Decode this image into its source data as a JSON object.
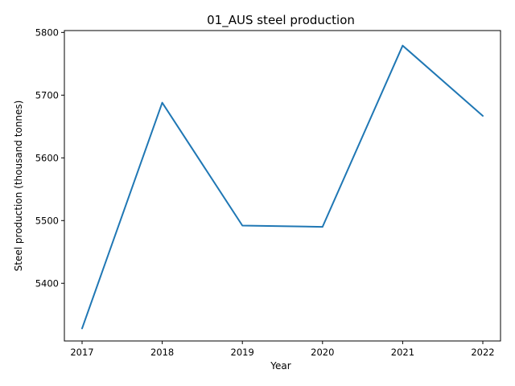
{
  "chart_data": {
    "type": "line",
    "title": "01_AUS steel production",
    "xlabel": "Year",
    "ylabel": "Steel production (thousand tonnes)",
    "x": [
      2017,
      2018,
      2019,
      2020,
      2021,
      2022
    ],
    "series": [
      {
        "values": [
          5328,
          5688,
          5492,
          5490,
          5779,
          5667
        ],
        "color": "#1f77b4"
      }
    ],
    "xticks": [
      "2017",
      "2018",
      "2019",
      "2020",
      "2021",
      "2022"
    ],
    "yticks": [
      "5400",
      "5500",
      "5600",
      "5700",
      "5800"
    ],
    "ylim": [
      5308,
      5803
    ],
    "grid": false,
    "legend": "none"
  }
}
